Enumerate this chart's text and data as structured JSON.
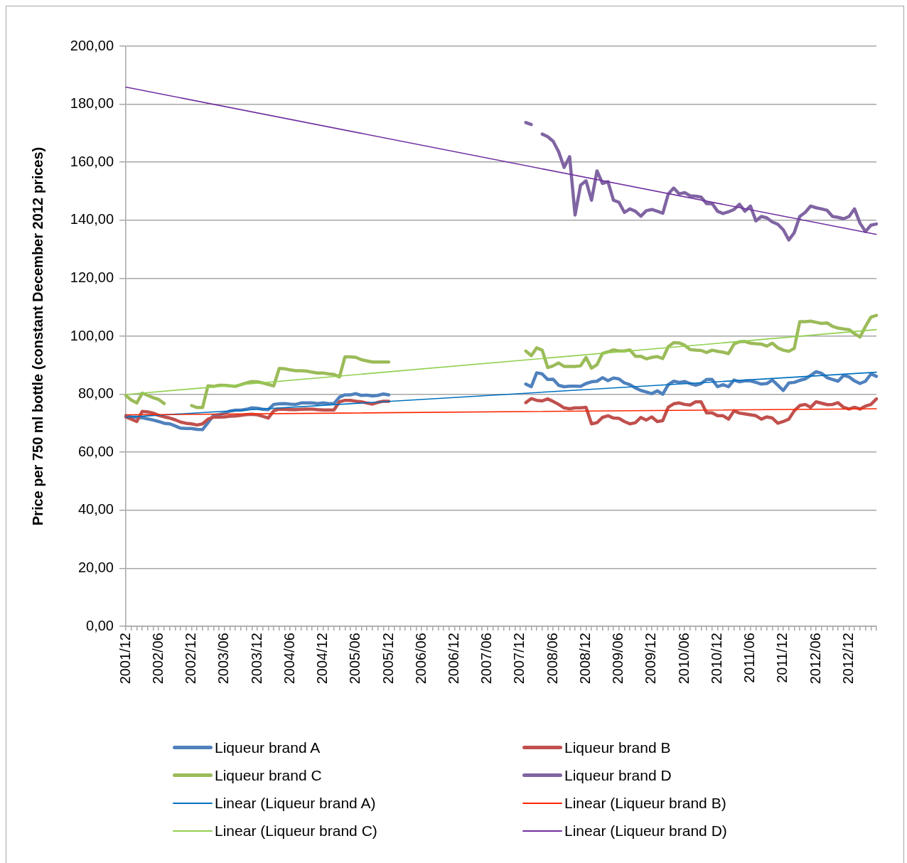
{
  "chart_data": {
    "type": "line",
    "categories": [
      "2001/12",
      null,
      null,
      null,
      null,
      null,
      "2002/06",
      null,
      null,
      null,
      null,
      null,
      "2002/12",
      null,
      null,
      null,
      null,
      null,
      "2003/06",
      null,
      null,
      null,
      null,
      null,
      "2003/12",
      null,
      null,
      null,
      null,
      null,
      "2004/06",
      null,
      null,
      null,
      null,
      null,
      "2004/12",
      null,
      null,
      null,
      null,
      null,
      "2005/06",
      null,
      null,
      null,
      null,
      null,
      "2005/12",
      null,
      null,
      null,
      null,
      null,
      "2006/06",
      null,
      null,
      null,
      null,
      null,
      "2006/12",
      null,
      null,
      null,
      null,
      null,
      "2007/06",
      null,
      null,
      null,
      null,
      null,
      "2007/12",
      null,
      null,
      null,
      null,
      null,
      "2008/06",
      null,
      null,
      null,
      null,
      null,
      "2008/12",
      null,
      null,
      null,
      null,
      null,
      "2009/06",
      null,
      null,
      null,
      null,
      null,
      "2009/12",
      null,
      null,
      null,
      null,
      null,
      "2010/06",
      null,
      null,
      null,
      null,
      null,
      "2010/12",
      null,
      null,
      null,
      null,
      null,
      "2011/06",
      null,
      null,
      null,
      null,
      null,
      "2011/12",
      null,
      null,
      null,
      null,
      null,
      "2012/06",
      null,
      null,
      null,
      null,
      null,
      "2012/12",
      null,
      null,
      null,
      null,
      null
    ],
    "ylabel": "Price per 750 ml bottle (constant December 2012 prices)",
    "ylim": [
      0,
      200
    ],
    "yticks": [
      {
        "value": 0,
        "label": "0,00"
      },
      {
        "value": 20,
        "label": "20,00"
      },
      {
        "value": 40,
        "label": "40,00"
      },
      {
        "value": 60,
        "label": "60,00"
      },
      {
        "value": 80,
        "label": "80,00"
      },
      {
        "value": 100,
        "label": "100,00"
      },
      {
        "value": 120,
        "label": "120,00"
      },
      {
        "value": 140,
        "label": "140,00"
      },
      {
        "value": 160,
        "label": "160,00"
      },
      {
        "value": 180,
        "label": "180,00"
      },
      {
        "value": 200,
        "label": "200,00"
      }
    ],
    "grid": "y",
    "legend": "bottom",
    "series": [
      {
        "name": "Liqueur brand A",
        "color": "#4f81bd",
        "values": [
          72.6,
          72.2,
          72.1,
          71.9,
          71.5,
          71.1,
          70.6,
          70.0,
          69.8,
          69.1,
          68.3,
          68.2,
          68.2,
          67.9,
          67.8,
          70.2,
          72.7,
          73.0,
          73.4,
          74.2,
          74.5,
          74.5,
          74.8,
          75.3,
          75.2,
          74.8,
          74.7,
          76.5,
          76.7,
          76.8,
          76.6,
          76.5,
          77.0,
          77.0,
          77.0,
          76.8,
          77.0,
          76.8,
          76.8,
          79.0,
          79.8,
          79.8,
          80.2,
          79.6,
          79.7,
          79.4,
          79.6,
          80.1,
          79.8,
          null,
          null,
          null,
          null,
          null,
          null,
          null,
          null,
          null,
          null,
          null,
          null,
          null,
          null,
          null,
          null,
          null,
          null,
          null,
          null,
          null,
          null,
          null,
          null,
          83.5,
          82.6,
          87.4,
          87.0,
          85.1,
          85.2,
          83.1,
          82.6,
          82.8,
          82.8,
          82.7,
          83.7,
          84.3,
          84.5,
          85.7,
          84.7,
          85.6,
          85.3,
          83.9,
          83.3,
          82.2,
          81.3,
          80.8,
          80.2,
          81.2,
          80.0,
          83.3,
          84.5,
          84.1,
          84.4,
          83.7,
          83.1,
          83.7,
          85.1,
          85.1,
          82.6,
          83.3,
          82.6,
          84.9,
          84.3,
          84.6,
          84.6,
          84.1,
          83.5,
          83.7,
          84.9,
          83.1,
          81.3,
          83.9,
          84.1,
          84.8,
          85.3,
          86.5,
          87.8,
          87.2,
          85.7,
          85.1,
          84.5,
          86.5,
          86.0,
          84.6,
          83.7,
          84.5,
          87.0,
          86.2
        ]
      },
      {
        "name": "Liqueur brand B",
        "color": "#c0504d",
        "values": [
          72.2,
          71.4,
          70.6,
          74.1,
          73.9,
          73.5,
          72.7,
          72.2,
          71.8,
          71.2,
          70.4,
          70.0,
          69.8,
          69.4,
          69.8,
          71.4,
          72.1,
          72.1,
          72.2,
          72.4,
          72.5,
          72.7,
          73.0,
          73.1,
          72.9,
          72.4,
          71.8,
          74.3,
          74.9,
          74.8,
          74.7,
          74.7,
          74.8,
          74.9,
          74.9,
          74.7,
          74.6,
          74.6,
          74.6,
          77.4,
          77.9,
          77.9,
          77.6,
          77.4,
          77.0,
          76.6,
          77.2,
          77.6,
          77.6,
          null,
          null,
          null,
          null,
          null,
          null,
          null,
          null,
          null,
          null,
          null,
          null,
          null,
          null,
          null,
          null,
          null,
          null,
          null,
          null,
          null,
          null,
          null,
          null,
          77.1,
          78.5,
          77.9,
          77.7,
          78.4,
          77.5,
          76.5,
          75.3,
          75.0,
          75.3,
          75.3,
          75.5,
          69.8,
          70.2,
          72.0,
          72.6,
          71.8,
          71.7,
          70.6,
          69.8,
          70.2,
          72.0,
          71.1,
          72.2,
          70.6,
          70.9,
          75.5,
          76.7,
          77.0,
          76.5,
          76.3,
          77.4,
          77.4,
          73.6,
          73.6,
          72.6,
          72.6,
          71.4,
          74.3,
          73.5,
          73.2,
          72.9,
          72.6,
          71.4,
          72.2,
          71.8,
          70.0,
          70.6,
          71.4,
          74.3,
          76.1,
          76.5,
          75.5,
          77.4,
          76.9,
          76.4,
          76.5,
          77.1,
          75.5,
          74.9,
          75.5,
          74.9,
          75.9,
          76.5,
          78.4
        ]
      },
      {
        "name": "Liqueur brand C",
        "color": "#9bbb59",
        "values": [
          79.6,
          78.0,
          77.0,
          80.4,
          79.6,
          78.8,
          78.2,
          76.8,
          null,
          null,
          null,
          null,
          76.1,
          75.4,
          75.4,
          82.9,
          82.7,
          83.1,
          83.1,
          82.9,
          82.7,
          83.3,
          83.9,
          84.4,
          84.3,
          83.9,
          83.4,
          82.9,
          88.9,
          88.8,
          88.4,
          88.1,
          88.1,
          88.0,
          87.6,
          87.3,
          87.3,
          87.0,
          86.8,
          86.0,
          92.9,
          92.9,
          92.7,
          91.9,
          91.5,
          91.1,
          91.1,
          91.1,
          91.1,
          null,
          null,
          null,
          null,
          null,
          null,
          null,
          null,
          null,
          null,
          null,
          null,
          null,
          null,
          null,
          null,
          null,
          null,
          null,
          null,
          null,
          null,
          null,
          null,
          94.9,
          93.3,
          96.0,
          95.2,
          89.2,
          89.8,
          90.8,
          89.6,
          89.6,
          89.6,
          89.8,
          92.7,
          89.0,
          90.2,
          94.1,
          94.6,
          95.3,
          94.9,
          94.9,
          95.3,
          93.1,
          93.1,
          92.2,
          92.7,
          93.0,
          92.3,
          96.4,
          97.8,
          97.7,
          96.9,
          95.4,
          95.2,
          95.1,
          94.4,
          95.2,
          94.8,
          94.5,
          94.0,
          97.3,
          98.1,
          98.2,
          97.6,
          97.4,
          97.3,
          96.6,
          97.6,
          96.0,
          95.2,
          94.8,
          95.8,
          105.0,
          105.0,
          105.2,
          104.8,
          104.4,
          104.6,
          103.4,
          102.8,
          102.5,
          102.3,
          100.9,
          99.7,
          103.4,
          106.6,
          107.2
        ]
      },
      {
        "name": "Liqueur brand D",
        "color": "#8064a2",
        "values": [
          null,
          null,
          null,
          null,
          null,
          null,
          null,
          null,
          null,
          null,
          null,
          null,
          null,
          null,
          null,
          null,
          null,
          null,
          null,
          null,
          null,
          null,
          null,
          null,
          null,
          null,
          null,
          null,
          null,
          null,
          null,
          null,
          null,
          null,
          null,
          null,
          null,
          null,
          null,
          null,
          null,
          null,
          null,
          null,
          null,
          null,
          null,
          null,
          null,
          null,
          null,
          null,
          null,
          null,
          null,
          null,
          null,
          null,
          null,
          null,
          null,
          null,
          null,
          null,
          null,
          null,
          null,
          null,
          null,
          null,
          null,
          null,
          null,
          173.7,
          173.0,
          null,
          169.7,
          168.8,
          167.2,
          163.6,
          158.2,
          161.9,
          141.8,
          152.1,
          153.6,
          146.9,
          157.0,
          152.7,
          153.3,
          146.9,
          146.2,
          142.7,
          143.9,
          143.1,
          141.4,
          143.3,
          143.7,
          143.1,
          142.4,
          149.0,
          151.1,
          149.1,
          149.5,
          148.4,
          148.3,
          148.0,
          145.7,
          145.8,
          143.1,
          142.3,
          142.9,
          143.7,
          145.5,
          143.1,
          144.9,
          139.8,
          141.3,
          140.8,
          139.4,
          138.6,
          136.7,
          133.2,
          135.7,
          141.3,
          142.7,
          144.9,
          144.3,
          143.9,
          143.4,
          141.3,
          141.0,
          140.5,
          141.3,
          143.9,
          139.0,
          136.1,
          138.3,
          138.7
        ]
      },
      {
        "name": "Linear (Liqueur brand A)",
        "color": "#0070c0",
        "values": [
          72.1,
          null,
          null,
          null,
          null,
          null,
          null,
          null,
          null,
          null,
          null,
          null,
          null,
          null,
          null,
          null,
          null,
          null,
          null,
          null,
          null,
          null,
          null,
          null,
          null,
          null,
          null,
          null,
          null,
          null,
          null,
          null,
          null,
          null,
          null,
          null,
          null,
          null,
          null,
          null,
          null,
          null,
          null,
          null,
          null,
          null,
          null,
          null,
          null,
          null,
          null,
          null,
          null,
          null,
          null,
          null,
          null,
          null,
          null,
          null,
          null,
          null,
          null,
          null,
          null,
          null,
          null,
          null,
          null,
          null,
          null,
          null,
          null,
          null,
          null,
          null,
          null,
          null,
          null,
          null,
          null,
          null,
          null,
          null,
          null,
          null,
          null,
          null,
          null,
          null,
          null,
          null,
          null,
          null,
          null,
          null,
          null,
          null,
          null,
          null,
          null,
          null,
          null,
          null,
          null,
          null,
          null,
          null,
          null,
          null,
          null,
          null,
          null,
          null,
          null,
          null,
          null,
          null,
          null,
          null,
          null,
          null,
          null,
          null,
          null,
          null,
          null,
          null,
          null,
          null,
          null,
          null,
          null,
          null,
          null,
          null,
          null,
          87.6
        ]
      },
      {
        "name": "Linear (Liqueur brand B)",
        "color": "#ff2600",
        "values": [
          72.9,
          null,
          null,
          null,
          null,
          null,
          null,
          null,
          null,
          null,
          null,
          null,
          null,
          null,
          null,
          null,
          null,
          null,
          null,
          null,
          null,
          null,
          null,
          null,
          null,
          null,
          null,
          null,
          null,
          null,
          null,
          null,
          null,
          null,
          null,
          null,
          null,
          null,
          null,
          null,
          null,
          null,
          null,
          null,
          null,
          null,
          null,
          null,
          null,
          null,
          null,
          null,
          null,
          null,
          null,
          null,
          null,
          null,
          null,
          null,
          null,
          null,
          null,
          null,
          null,
          null,
          null,
          null,
          null,
          null,
          null,
          null,
          null,
          null,
          null,
          null,
          null,
          null,
          null,
          null,
          null,
          null,
          null,
          null,
          null,
          null,
          null,
          null,
          null,
          null,
          null,
          null,
          null,
          null,
          null,
          null,
          null,
          null,
          null,
          null,
          null,
          null,
          null,
          null,
          null,
          null,
          null,
          null,
          null,
          null,
          null,
          null,
          null,
          null,
          null,
          null,
          null,
          null,
          null,
          null,
          null,
          null,
          null,
          null,
          null,
          null,
          null,
          null,
          null,
          null,
          null,
          null,
          null,
          null,
          null,
          null,
          null,
          75.0
        ]
      },
      {
        "name": "Linear (Liqueur brand C)",
        "color": "#92d050",
        "values": [
          79.9,
          null,
          null,
          null,
          null,
          null,
          null,
          null,
          null,
          null,
          null,
          null,
          null,
          null,
          null,
          null,
          null,
          null,
          null,
          null,
          null,
          null,
          null,
          null,
          null,
          null,
          null,
          null,
          null,
          null,
          null,
          null,
          null,
          null,
          null,
          null,
          null,
          null,
          null,
          null,
          null,
          null,
          null,
          null,
          null,
          null,
          null,
          null,
          null,
          null,
          null,
          null,
          null,
          null,
          null,
          null,
          null,
          null,
          null,
          null,
          null,
          null,
          null,
          null,
          null,
          null,
          null,
          null,
          null,
          null,
          null,
          null,
          null,
          null,
          null,
          null,
          null,
          null,
          null,
          null,
          null,
          null,
          null,
          null,
          null,
          null,
          null,
          null,
          null,
          null,
          null,
          null,
          null,
          null,
          null,
          null,
          null,
          null,
          null,
          null,
          null,
          null,
          null,
          null,
          null,
          null,
          null,
          null,
          null,
          null,
          null,
          null,
          null,
          null,
          null,
          null,
          null,
          null,
          null,
          null,
          null,
          null,
          null,
          null,
          null,
          null,
          null,
          null,
          null,
          null,
          null,
          null,
          null,
          null,
          null,
          null,
          null,
          102.3
        ]
      },
      {
        "name": "Linear (Liqueur brand D)",
        "color": "#7030a0",
        "values": [
          185.9,
          null,
          null,
          null,
          null,
          null,
          null,
          null,
          null,
          null,
          null,
          null,
          null,
          null,
          null,
          null,
          null,
          null,
          null,
          null,
          null,
          null,
          null,
          null,
          null,
          null,
          null,
          null,
          null,
          null,
          null,
          null,
          null,
          null,
          null,
          null,
          null,
          null,
          null,
          null,
          null,
          null,
          null,
          null,
          null,
          null,
          null,
          null,
          null,
          null,
          null,
          null,
          null,
          null,
          null,
          null,
          null,
          null,
          null,
          null,
          null,
          null,
          null,
          null,
          null,
          null,
          null,
          null,
          null,
          null,
          null,
          null,
          null,
          null,
          null,
          null,
          null,
          null,
          null,
          null,
          null,
          null,
          null,
          null,
          null,
          null,
          null,
          null,
          null,
          null,
          null,
          null,
          null,
          null,
          null,
          null,
          null,
          null,
          null,
          null,
          null,
          null,
          null,
          null,
          null,
          null,
          null,
          null,
          null,
          null,
          null,
          null,
          null,
          null,
          null,
          null,
          null,
          null,
          null,
          null,
          null,
          null,
          null,
          null,
          null,
          null,
          null,
          null,
          null,
          null,
          null,
          null,
          null,
          null,
          null,
          null,
          null,
          135.1
        ]
      }
    ]
  }
}
